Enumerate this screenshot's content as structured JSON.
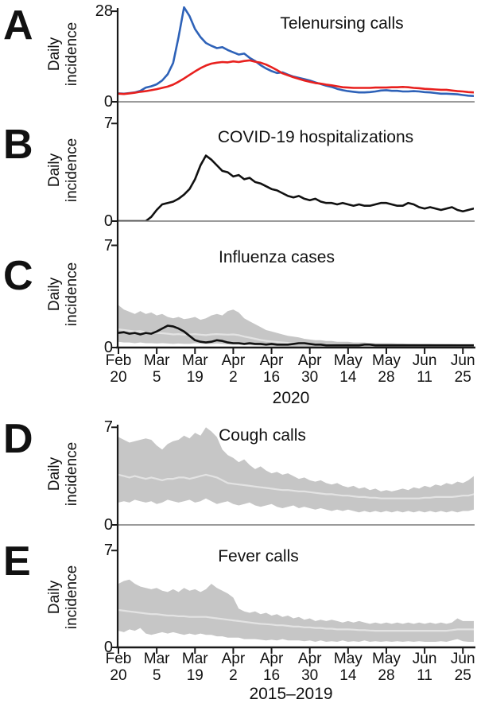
{
  "figure": {
    "y_axis_label": {
      "line1": "Daily",
      "line2": "incidence"
    },
    "panels": [
      {
        "letter": "A",
        "title": "Telenursing calls",
        "y_max": "28",
        "y_min": "0"
      },
      {
        "letter": "B",
        "title": "COVID-19 hospitalizations",
        "y_max": "7",
        "y_min": "0"
      },
      {
        "letter": "C",
        "title": "Influenza cases",
        "y_max": "7",
        "y_min": "0"
      },
      {
        "letter": "D",
        "title": "Cough calls",
        "y_max": "7",
        "y_min": "0"
      },
      {
        "letter": "E",
        "title": "Fever calls",
        "y_max": "7",
        "y_min": "0"
      }
    ],
    "x_axis_top": {
      "year": "2020"
    },
    "x_axis_bottom": {
      "year": "2015–2019"
    }
  },
  "colors": {
    "blue_line": "#2e62b8",
    "red_line": "#e8201e",
    "black_line": "#111111",
    "band_gray": "#c6c6c6",
    "median_gray": "#e3e3e3",
    "axis_black": "#1a1a1a",
    "baseline_gray": "#7a7a7a"
  },
  "chart_data": [
    {
      "panel": "A",
      "type": "line",
      "title": "Telenursing calls",
      "ylabel": "Daily incidence",
      "ylim": [
        0,
        28
      ],
      "grid": false,
      "legend": "none",
      "x_tick_labels": [
        "Feb 20",
        "Mar 5",
        "Mar 19",
        "Apr 2",
        "Apr 16",
        "Apr 30",
        "May 14",
        "May 28",
        "Jun 11",
        "Jun 25"
      ],
      "x_year": "2020",
      "x_tick_interval_days": 14,
      "sample_interval_days": 2,
      "series": [
        {
          "name": "blue-line",
          "color": "#2e62b8",
          "values": [
            2.6,
            2.5,
            2.7,
            2.9,
            3.4,
            4.4,
            4.8,
            5.4,
            6.6,
            8.5,
            12.0,
            20.0,
            29.2,
            26.5,
            22.5,
            20.0,
            18.2,
            17.3,
            16.6,
            16.9,
            16.0,
            15.3,
            14.6,
            14.9,
            13.6,
            12.6,
            11.3,
            10.3,
            9.5,
            8.9,
            9.1,
            8.4,
            7.8,
            7.4,
            7.0,
            6.6,
            6.0,
            5.5,
            5.0,
            4.6,
            4.0,
            3.6,
            3.3,
            3.1,
            2.9,
            2.9,
            3.0,
            3.2,
            3.5,
            3.6,
            3.4,
            3.4,
            3.2,
            3.2,
            3.3,
            3.2,
            3.0,
            2.9,
            2.7,
            2.5,
            2.5,
            2.4,
            2.3,
            2.1,
            1.9,
            1.8
          ]
        },
        {
          "name": "red-line",
          "color": "#e8201e",
          "values": [
            2.5,
            2.4,
            2.6,
            2.8,
            3.1,
            3.3,
            3.6,
            3.9,
            4.3,
            4.7,
            5.3,
            6.2,
            7.2,
            8.3,
            9.4,
            10.4,
            11.2,
            11.8,
            12.1,
            12.3,
            12.2,
            12.5,
            12.3,
            12.6,
            12.8,
            12.4,
            12.1,
            11.5,
            10.7,
            9.8,
            8.8,
            8.2,
            7.6,
            7.1,
            6.6,
            6.2,
            5.8,
            5.6,
            5.3,
            5.1,
            4.8,
            4.5,
            4.4,
            4.3,
            4.3,
            4.3,
            4.3,
            4.4,
            4.4,
            4.4,
            4.5,
            4.5,
            4.6,
            4.5,
            4.3,
            4.2,
            4.0,
            3.9,
            3.8,
            3.7,
            3.7,
            3.5,
            3.3,
            3.2,
            3.0,
            2.9
          ]
        }
      ]
    },
    {
      "panel": "B",
      "type": "line",
      "title": "COVID-19 hospitalizations",
      "ylabel": "Daily incidence",
      "ylim": [
        0,
        7
      ],
      "grid": false,
      "legend": "none",
      "x_tick_labels": [
        "Feb 20",
        "Mar 5",
        "Mar 19",
        "Apr 2",
        "Apr 16",
        "Apr 30",
        "May 14",
        "May 28",
        "Jun 11",
        "Jun 25"
      ],
      "x_year": "2020",
      "x_tick_interval_days": 14,
      "sample_interval_days": 2,
      "series": [
        {
          "name": "black-line",
          "color": "#111111",
          "values": [
            0,
            0,
            0,
            0,
            0,
            0,
            0.3,
            0.8,
            1.2,
            1.3,
            1.4,
            1.6,
            1.9,
            2.3,
            3.0,
            4.0,
            4.7,
            4.4,
            4.0,
            3.6,
            3.5,
            3.2,
            3.3,
            3.0,
            3.1,
            2.8,
            2.7,
            2.5,
            2.3,
            2.2,
            2.0,
            1.8,
            1.7,
            1.8,
            1.6,
            1.5,
            1.6,
            1.4,
            1.3,
            1.3,
            1.2,
            1.3,
            1.2,
            1.1,
            1.2,
            1.1,
            1.1,
            1.2,
            1.3,
            1.3,
            1.2,
            1.1,
            1.1,
            1.3,
            1.2,
            1.0,
            0.9,
            1.0,
            0.9,
            0.8,
            0.9,
            1.0,
            0.8,
            0.7,
            0.8,
            0.9
          ]
        }
      ]
    },
    {
      "panel": "C",
      "type": "line",
      "title": "Influenza cases",
      "ylabel": "Daily incidence",
      "ylim": [
        0,
        7
      ],
      "grid": false,
      "legend": "none",
      "x_tick_labels": [
        "Feb 20",
        "Mar 5",
        "Mar 19",
        "Apr 2",
        "Apr 16",
        "Apr 30",
        "May 14",
        "May 28",
        "Jun 11",
        "Jun 25"
      ],
      "x_year": "2020",
      "x_tick_interval_days": 14,
      "sample_interval_days": 2,
      "band": {
        "name": "historical-range-band",
        "color": "#c6c6c6",
        "high": [
          2.9,
          2.6,
          2.45,
          2.3,
          2.5,
          2.3,
          2.4,
          2.2,
          2.3,
          2.1,
          2.0,
          2.1,
          1.95,
          2.0,
          2.1,
          1.9,
          2.0,
          2.2,
          2.3,
          2.2,
          2.5,
          2.6,
          2.4,
          2.0,
          1.8,
          1.6,
          1.4,
          1.2,
          1.1,
          1.0,
          0.9,
          0.8,
          0.75,
          0.7,
          0.6,
          0.55,
          0.5,
          0.5,
          0.45,
          0.45,
          0.4,
          0.4,
          0.4,
          0.35,
          0.35,
          0.35,
          0.3,
          0.3,
          0.3,
          0.3,
          0.3,
          0.28,
          0.28,
          0.26,
          0.26,
          0.25,
          0.25,
          0.25,
          0.24,
          0.24,
          0.23,
          0.23,
          0.22,
          0.22,
          0.22,
          0.22
        ],
        "low": [
          0.4,
          0.35,
          0.35,
          0.3,
          0.35,
          0.3,
          0.3,
          0.28,
          0.3,
          0.28,
          0.25,
          0.28,
          0.25,
          0.25,
          0.3,
          0.28,
          0.25,
          0.25,
          0.28,
          0.25,
          0.22,
          0.2,
          0.2,
          0.18,
          0.16,
          0.15,
          0.13,
          0.12,
          0.11,
          0.1,
          0.08,
          0.08,
          0.07,
          0.07,
          0.07,
          0.07,
          0.07,
          0.07,
          0.07,
          0.07,
          0.07,
          0.07,
          0.07,
          0.07,
          0.07,
          0.07,
          0.07,
          0.07,
          0.07,
          0.07,
          0.07,
          0.07,
          0.07,
          0.07,
          0.07,
          0.07,
          0.07,
          0.07,
          0.07,
          0.07,
          0.07,
          0.07,
          0.07,
          0.07,
          0.07,
          0.07
        ]
      },
      "series": [
        {
          "name": "median-line",
          "color": "#e3e3e3",
          "values": [
            1.25,
            1.2,
            1.15,
            1.1,
            1.12,
            1.05,
            1.0,
            1.0,
            0.98,
            0.95,
            0.9,
            0.92,
            0.88,
            0.9,
            0.92,
            0.88,
            0.85,
            0.9,
            0.92,
            0.9,
            0.88,
            0.9,
            0.85,
            0.75,
            0.68,
            0.6,
            0.52,
            0.46,
            0.42,
            0.38,
            0.35,
            0.32,
            0.3,
            0.3,
            0.28,
            0.26,
            0.24,
            0.22,
            0.2,
            0.2,
            0.18,
            0.18,
            0.15,
            0.15,
            0.15,
            0.15,
            0.15,
            0.15,
            0.15,
            0.15,
            0.15,
            0.15,
            0.15,
            0.15,
            0.15,
            0.15,
            0.15,
            0.15,
            0.15,
            0.15,
            0.15,
            0.15,
            0.15,
            0.15,
            0.15,
            0.15
          ]
        },
        {
          "name": "black-line",
          "color": "#111111",
          "values": [
            1.0,
            1.05,
            0.95,
            1.0,
            0.9,
            1.0,
            0.95,
            1.1,
            1.3,
            1.5,
            1.45,
            1.3,
            1.1,
            0.8,
            0.5,
            0.4,
            0.35,
            0.4,
            0.5,
            0.45,
            0.35,
            0.3,
            0.3,
            0.25,
            0.3,
            0.25,
            0.25,
            0.2,
            0.25,
            0.2,
            0.2,
            0.2,
            0.25,
            0.3,
            0.3,
            0.25,
            0.2,
            0.2,
            0.15,
            0.15,
            0.15,
            0.15,
            0.15,
            0.15,
            0.15,
            0.2,
            0.2,
            0.15,
            0.15,
            0.15,
            0.15,
            0.15,
            0.15,
            0.15,
            0.15,
            0.15,
            0.15,
            0.15,
            0.15,
            0.15,
            0.15,
            0.15,
            0.15,
            0.15,
            0.15,
            0.15
          ]
        }
      ]
    },
    {
      "panel": "D",
      "type": "line",
      "title": "Cough calls",
      "ylabel": "Daily incidence",
      "ylim": [
        0,
        7
      ],
      "grid": false,
      "legend": "none",
      "x_tick_labels": [
        "Feb 20",
        "Mar 5",
        "Mar 19",
        "Apr 2",
        "Apr 16",
        "Apr 30",
        "May 14",
        "May 28",
        "Jun 11",
        "Jun 25"
      ],
      "x_year": "2015–2019",
      "x_tick_interval_days": 14,
      "sample_interval_days": 2,
      "band": {
        "name": "historical-range-band",
        "color": "#c6c6c6",
        "high": [
          6.3,
          6.1,
          5.9,
          6.0,
          6.1,
          6.2,
          6.1,
          5.7,
          5.4,
          5.8,
          6.0,
          6.1,
          6.4,
          6.2,
          6.6,
          6.4,
          7.0,
          6.7,
          6.3,
          5.4,
          5.0,
          4.8,
          4.5,
          4.7,
          4.3,
          4.0,
          4.2,
          3.9,
          3.7,
          3.8,
          3.6,
          3.7,
          3.5,
          3.3,
          3.4,
          3.2,
          3.1,
          3.2,
          3.0,
          2.9,
          3.0,
          2.8,
          2.7,
          2.8,
          2.6,
          2.7,
          2.5,
          2.6,
          2.4,
          2.5,
          2.4,
          2.5,
          2.6,
          2.5,
          2.7,
          2.6,
          2.8,
          2.7,
          2.9,
          2.8,
          3.0,
          2.9,
          3.1,
          3.0,
          3.2,
          3.5
        ],
        "low": [
          1.6,
          1.7,
          1.6,
          1.8,
          1.7,
          1.6,
          1.7,
          1.5,
          1.6,
          1.8,
          1.7,
          1.6,
          1.7,
          1.8,
          1.6,
          1.7,
          1.9,
          1.7,
          1.5,
          1.6,
          1.7,
          1.5,
          1.4,
          1.5,
          1.6,
          1.4,
          1.3,
          1.4,
          1.5,
          1.3,
          1.2,
          1.3,
          1.4,
          1.2,
          1.3,
          1.2,
          1.1,
          1.2,
          1.1,
          1.0,
          1.1,
          1.0,
          1.1,
          1.0,
          0.9,
          1.0,
          0.9,
          1.0,
          0.9,
          1.0,
          0.9,
          1.0,
          0.9,
          1.0,
          0.9,
          1.0,
          0.9,
          1.0,
          0.9,
          1.0,
          0.9,
          1.0,
          0.9,
          1.0,
          1.0,
          1.1
        ]
      },
      "series": [
        {
          "name": "median-line",
          "color": "#e3e3e3",
          "values": [
            3.6,
            3.5,
            3.4,
            3.5,
            3.4,
            3.3,
            3.4,
            3.3,
            3.2,
            3.3,
            3.3,
            3.4,
            3.4,
            3.3,
            3.4,
            3.5,
            3.6,
            3.5,
            3.4,
            3.2,
            3.0,
            2.95,
            2.9,
            2.85,
            2.8,
            2.75,
            2.7,
            2.65,
            2.6,
            2.55,
            2.5,
            2.5,
            2.45,
            2.4,
            2.4,
            2.35,
            2.3,
            2.25,
            2.2,
            2.2,
            2.15,
            2.1,
            2.1,
            2.05,
            2.0,
            2.0,
            1.95,
            1.95,
            1.9,
            1.9,
            1.9,
            1.9,
            1.9,
            1.9,
            1.9,
            1.9,
            1.95,
            1.95,
            2.0,
            2.0,
            2.0,
            2.0,
            2.05,
            2.1,
            2.1,
            2.2
          ]
        }
      ]
    },
    {
      "panel": "E",
      "type": "line",
      "title": "Fever calls",
      "ylabel": "Daily incidence",
      "ylim": [
        0,
        7
      ],
      "grid": false,
      "legend": "none",
      "x_tick_labels": [
        "Feb 20",
        "Mar 5",
        "Mar 19",
        "Apr 2",
        "Apr 16",
        "Apr 30",
        "May 14",
        "May 28",
        "Jun 11",
        "Jun 25"
      ],
      "x_year": "2015–2019",
      "x_tick_interval_days": 14,
      "sample_interval_days": 2,
      "band": {
        "name": "historical-range-band",
        "color": "#c6c6c6",
        "high": [
          4.6,
          4.8,
          4.9,
          4.6,
          4.4,
          4.3,
          4.2,
          4.3,
          4.1,
          4.0,
          4.2,
          4.0,
          4.3,
          4.1,
          4.2,
          4.0,
          4.2,
          4.6,
          4.3,
          4.1,
          3.9,
          3.6,
          2.8,
          2.6,
          2.5,
          2.6,
          2.4,
          2.5,
          2.3,
          2.4,
          2.2,
          2.3,
          2.1,
          2.2,
          2.0,
          2.1,
          1.9,
          2.0,
          1.9,
          2.0,
          1.9,
          1.8,
          1.9,
          1.8,
          1.9,
          1.8,
          1.7,
          1.8,
          1.7,
          1.8,
          1.7,
          1.8,
          1.7,
          1.8,
          1.7,
          1.8,
          1.7,
          1.8,
          1.7,
          1.8,
          1.7,
          1.8,
          2.1,
          1.9,
          1.9,
          1.9
        ],
        "low": [
          1.2,
          1.1,
          1.3,
          1.2,
          1.4,
          1.0,
          0.9,
          1.0,
          1.1,
          1.0,
          1.1,
          1.0,
          0.9,
          1.0,
          0.9,
          1.0,
          0.9,
          0.9,
          0.8,
          0.8,
          0.7,
          0.7,
          0.7,
          0.6,
          0.6,
          0.6,
          0.55,
          0.5,
          0.55,
          0.5,
          0.6,
          0.5,
          0.5,
          0.5,
          0.45,
          0.5,
          0.4,
          0.5,
          0.4,
          0.45,
          0.4,
          0.5,
          0.4,
          0.45,
          0.4,
          0.5,
          0.4,
          0.45,
          0.4,
          0.45,
          0.4,
          0.45,
          0.4,
          0.45,
          0.4,
          0.45,
          0.4,
          0.4,
          0.4,
          0.45,
          0.4,
          0.5,
          0.6,
          0.45,
          0.4,
          0.4
        ]
      },
      "series": [
        {
          "name": "median-line",
          "color": "#e3e3e3",
          "values": [
            2.7,
            2.65,
            2.6,
            2.55,
            2.5,
            2.45,
            2.4,
            2.4,
            2.35,
            2.3,
            2.3,
            2.25,
            2.25,
            2.2,
            2.2,
            2.2,
            2.2,
            2.15,
            2.1,
            2.05,
            2.0,
            1.95,
            1.9,
            1.85,
            1.8,
            1.75,
            1.7,
            1.68,
            1.65,
            1.6,
            1.6,
            1.55,
            1.5,
            1.5,
            1.45,
            1.45,
            1.4,
            1.4,
            1.35,
            1.35,
            1.3,
            1.3,
            1.3,
            1.28,
            1.25,
            1.25,
            1.22,
            1.2,
            1.2,
            1.2,
            1.2,
            1.2,
            1.2,
            1.2,
            1.2,
            1.2,
            1.2,
            1.2,
            1.2,
            1.2,
            1.2,
            1.25,
            1.3,
            1.3,
            1.3,
            1.3
          ]
        }
      ]
    }
  ]
}
